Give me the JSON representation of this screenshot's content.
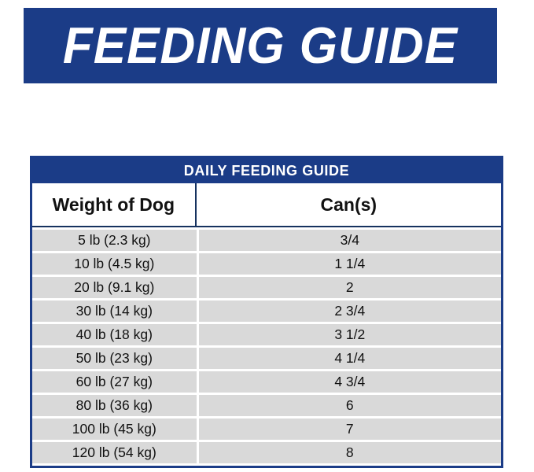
{
  "banner": {
    "title": "FEEDING GUIDE"
  },
  "table": {
    "title": "DAILY FEEDING GUIDE",
    "columns": {
      "weight": "Weight of Dog",
      "cans": "Can(s)"
    },
    "rows": [
      {
        "weight": "5 lb (2.3 kg)",
        "cans": "3/4"
      },
      {
        "weight": "10 lb (4.5 kg)",
        "cans": "1 1/4"
      },
      {
        "weight": "20 lb (9.1 kg)",
        "cans": "2"
      },
      {
        "weight": "30 lb (14 kg)",
        "cans": "2 3/4"
      },
      {
        "weight": "40 lb (18 kg)",
        "cans": "3 1/2"
      },
      {
        "weight": "50 lb (23 kg)",
        "cans": "4 1/4"
      },
      {
        "weight": "60 lb (27 kg)",
        "cans": "4 3/4"
      },
      {
        "weight": "80 lb (36 kg)",
        "cans": "6"
      },
      {
        "weight": "100 lb (45 kg)",
        "cans": "7"
      },
      {
        "weight": "120 lb (54 kg)",
        "cans": "8"
      }
    ]
  },
  "colors": {
    "navy": "#1b3c87",
    "row_gray": "#d9d9d9",
    "text": "#111111",
    "background": "#ffffff"
  }
}
